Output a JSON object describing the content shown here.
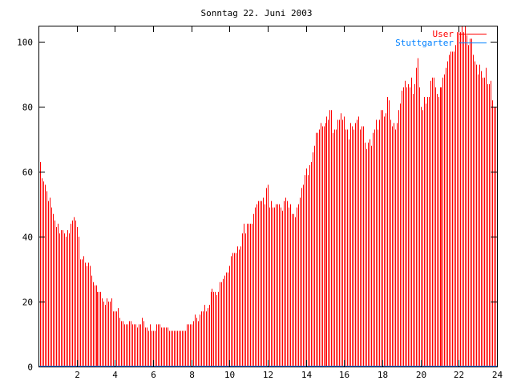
{
  "chart_data": {
    "type": "bar",
    "style": "impulses",
    "title": "Sonntag 22. Juni 2003",
    "xlabel": "",
    "ylabel": "",
    "xlim": [
      0,
      24
    ],
    "ylim": [
      0,
      105
    ],
    "x_ticks": [
      2,
      4,
      6,
      8,
      10,
      12,
      14,
      16,
      18,
      20,
      22,
      24
    ],
    "y_ticks": [
      0,
      20,
      40,
      60,
      80,
      100
    ],
    "grid": false,
    "legend_position": "top-right",
    "series": [
      {
        "name": "User",
        "color": "#ff0000",
        "values": [
          56,
          63,
          58,
          57,
          56,
          54,
          51,
          52,
          49,
          47,
          45,
          43,
          44,
          41,
          42,
          42,
          41,
          40,
          42,
          41,
          44,
          45,
          46,
          45,
          43,
          40,
          33,
          33,
          34,
          32,
          31,
          32,
          31,
          28,
          26,
          25,
          25,
          23,
          23,
          23,
          21,
          20,
          19,
          21,
          20,
          20,
          21,
          17,
          17,
          17,
          18,
          15,
          14,
          14,
          13,
          13,
          13,
          14,
          14,
          13,
          13,
          13,
          12,
          13,
          13,
          15,
          14,
          12,
          12,
          11,
          13,
          11,
          11,
          11,
          13,
          13,
          13,
          12,
          12,
          12,
          12,
          12,
          11,
          11,
          11,
          11,
          11,
          11,
          11,
          11,
          11,
          11,
          11,
          13,
          13,
          13,
          13,
          14,
          16,
          15,
          14,
          16,
          17,
          17,
          19,
          17,
          18,
          19,
          23,
          24,
          23,
          23,
          22,
          23,
          26,
          26,
          27,
          28,
          29,
          29,
          31,
          34,
          35,
          35,
          35,
          37,
          36,
          37,
          41,
          44,
          41,
          44,
          44,
          44,
          44,
          47,
          49,
          50,
          51,
          51,
          51,
          52,
          50,
          55,
          56,
          49,
          51,
          49,
          49,
          50,
          50,
          50,
          49,
          48,
          51,
          52,
          51,
          49,
          50,
          47,
          47,
          46,
          49,
          50,
          52,
          55,
          56,
          59,
          61,
          59,
          62,
          63,
          66,
          68,
          72,
          72,
          73,
          75,
          74,
          74,
          75,
          77,
          76,
          79,
          79,
          72,
          73,
          73,
          76,
          76,
          78,
          76,
          77,
          73,
          73,
          70,
          75,
          74,
          73,
          75,
          76,
          77,
          73,
          74,
          74,
          69,
          67,
          69,
          70,
          68,
          72,
          73,
          76,
          73,
          76,
          79,
          79,
          77,
          78,
          83,
          82,
          76,
          74,
          75,
          73,
          75,
          79,
          81,
          85,
          86,
          88,
          86,
          87,
          86,
          89,
          84,
          87,
          92,
          95,
          86,
          80,
          79,
          83,
          81,
          83,
          83,
          88,
          89,
          89,
          86,
          84,
          83,
          86,
          86,
          89,
          90,
          92,
          94,
          96,
          97,
          97,
          97,
          99,
          103,
          103,
          103,
          105,
          103,
          105,
          102,
          99,
          101,
          101,
          96,
          94,
          93,
          90,
          93,
          91,
          89,
          89,
          92,
          87,
          87,
          88,
          82,
          80,
          80
        ]
      },
      {
        "name": "Stuttgarter",
        "color": "#0080ff",
        "constant": 0
      }
    ]
  }
}
